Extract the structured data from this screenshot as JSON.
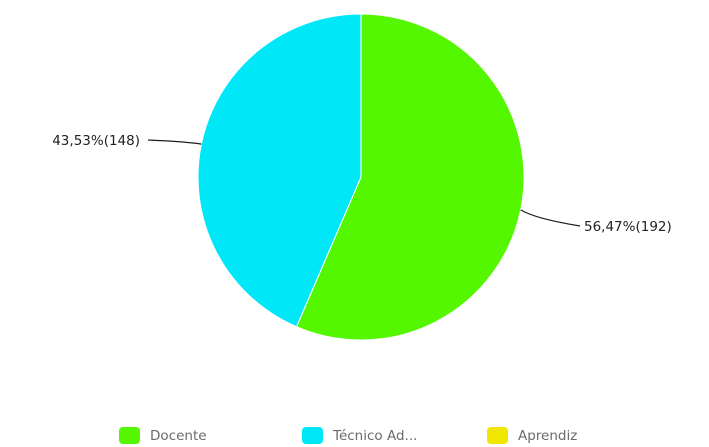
{
  "chart_data": {
    "type": "pie",
    "slices": [
      {
        "name": "Docente",
        "value": 192,
        "percent_label": "56,47%(192)",
        "color": "#55f700"
      },
      {
        "name": "Técnico Ad...",
        "value": 148,
        "percent_label": "43,53%(148)",
        "color": "#00e7f7"
      },
      {
        "name": "Aprendiz",
        "value": 0,
        "percent_label": "",
        "color": "#f0e600"
      }
    ],
    "legend_position": "bottom"
  }
}
